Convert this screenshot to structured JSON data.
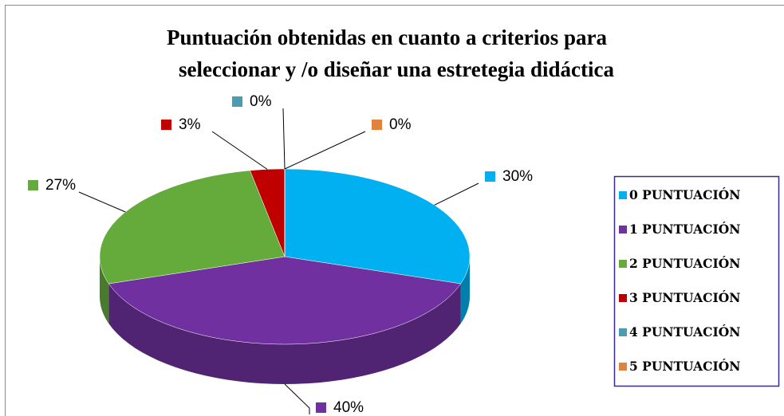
{
  "chart_data": {
    "type": "pie3d",
    "title": [
      "Puntuación obtenidas en cuanto a criterios para",
      "seleccionar y /o diseñar una estretegia didáctica"
    ],
    "categories": [
      "0 PUNTUACIÓN",
      "1 PUNTUACIÓN",
      "2 PUNTUACIÓN",
      "3 PUNTUACIÓN",
      "4 PUNTUACIÓN",
      "5 PUNTUACIÓN"
    ],
    "values": [
      30,
      40,
      27,
      3,
      0,
      0
    ],
    "value_labels": [
      "30%",
      "40%",
      "27%",
      "3%",
      "0%",
      "0%"
    ],
    "colors": [
      "#00b0f0",
      "#7030a0",
      "#64ab3c",
      "#c00000",
      "#4b9cb2",
      "#e0833e"
    ],
    "legend": "right"
  }
}
